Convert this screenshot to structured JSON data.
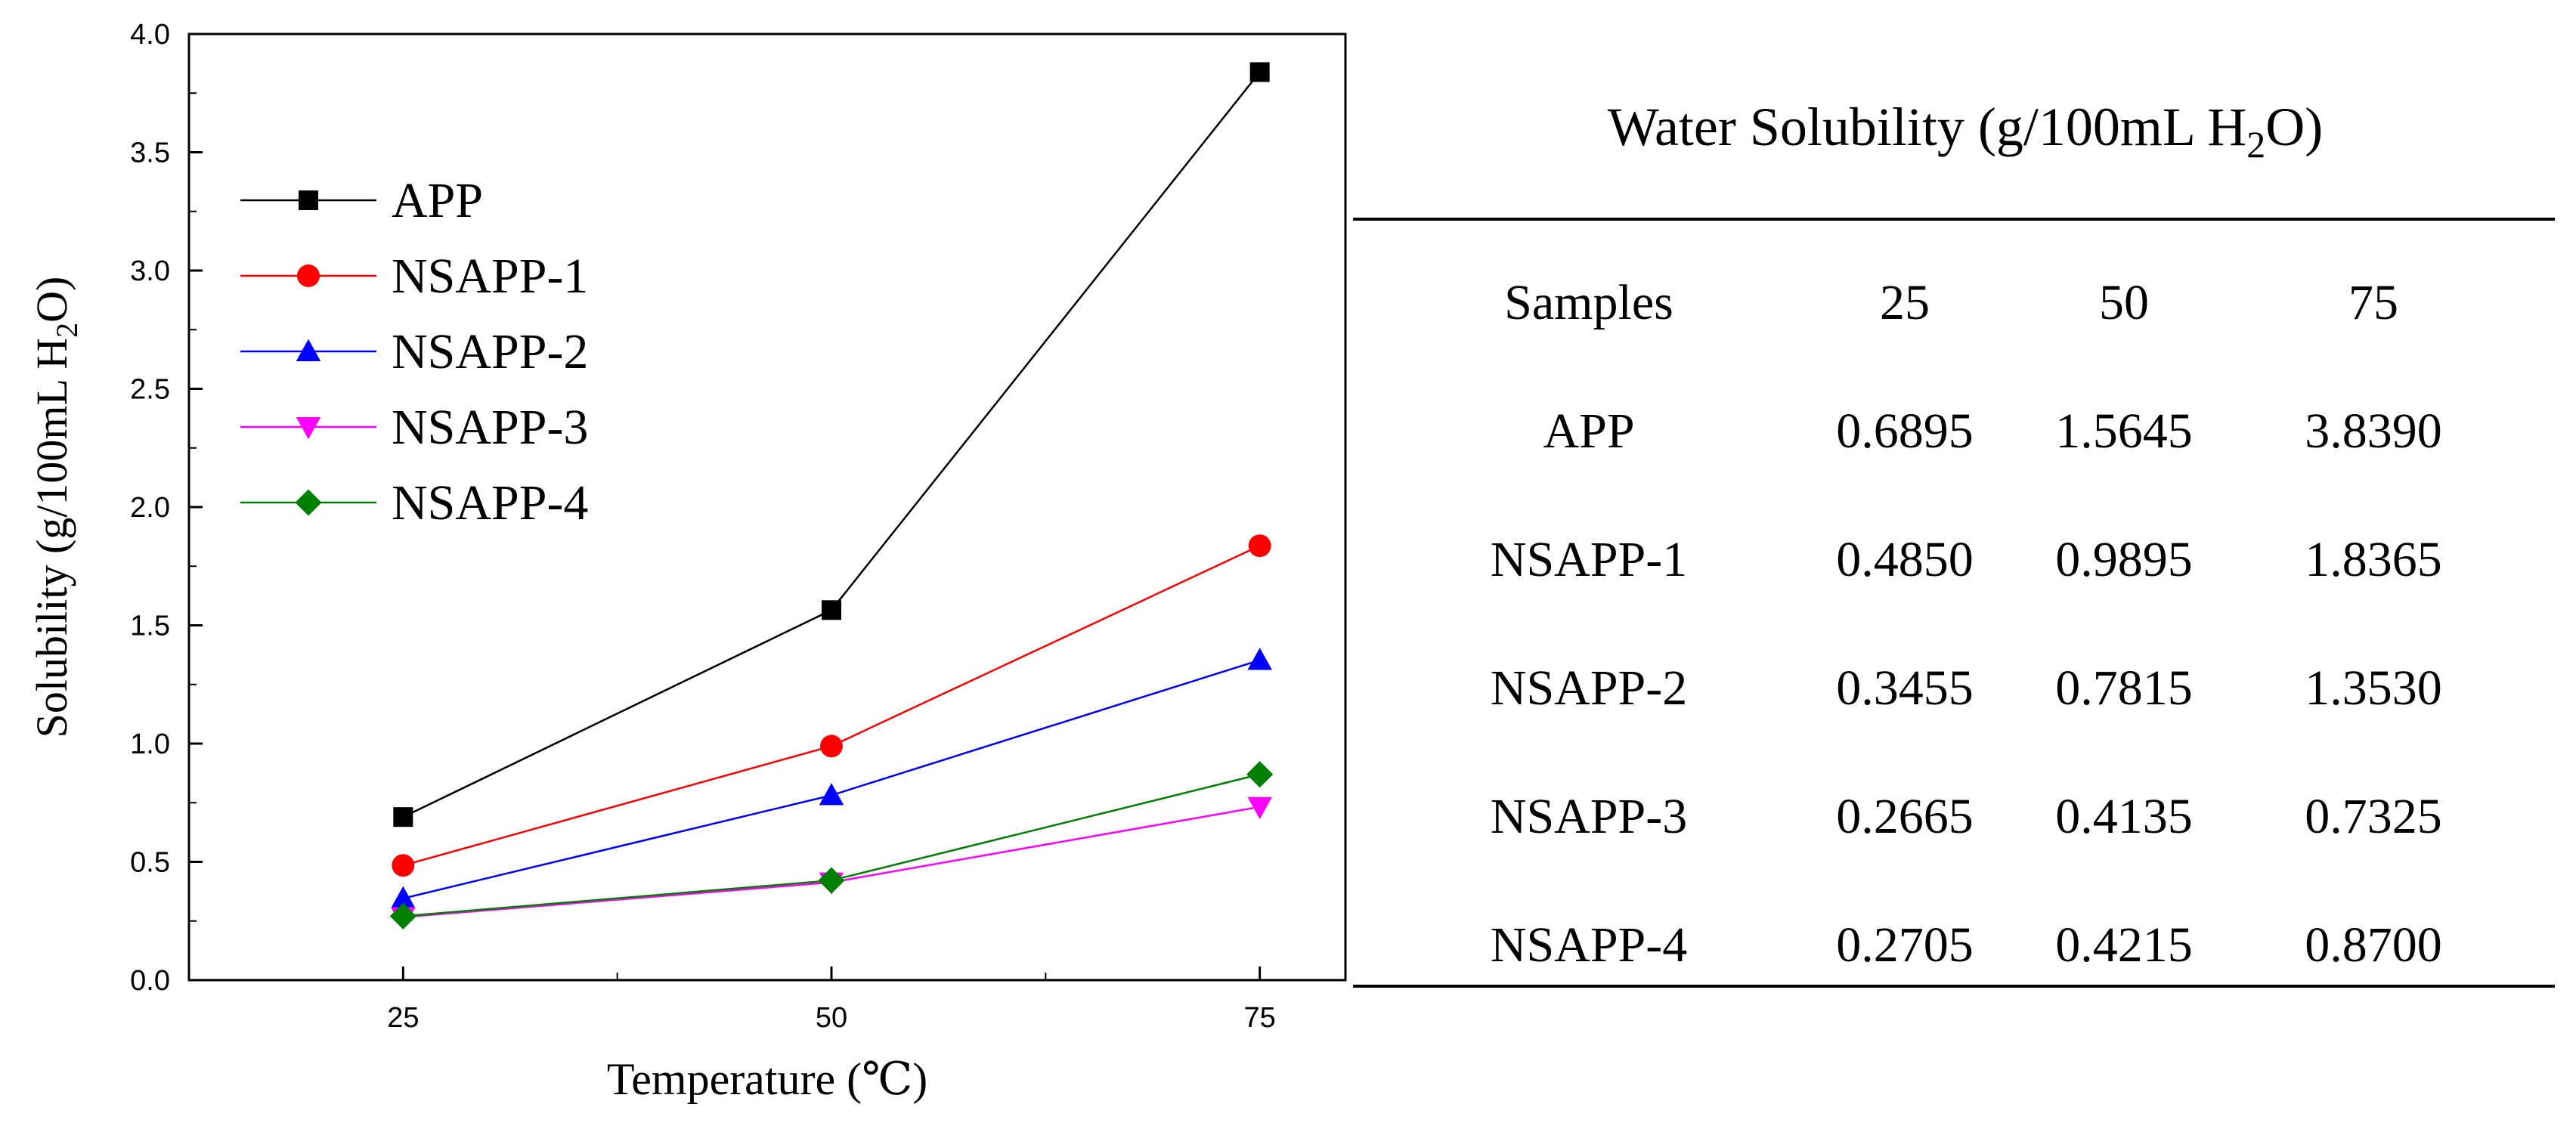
{
  "chart_data": [
    {
      "type": "line",
      "title": "",
      "xlabel": "Temperature (℃)",
      "ylabel": "Solubility (g/100mL H2O)",
      "ylabel_parts": {
        "main": "Solubility (g/100mL H",
        "sub": "2",
        "tail": "O)"
      },
      "xlim": [
        12.5,
        80
      ],
      "ylim": [
        0,
        4.0
      ],
      "x": [
        25,
        50,
        75
      ],
      "x_ticks": [
        "25",
        "50",
        "75"
      ],
      "y_ticks": [
        "0.0",
        "0.5",
        "1.0",
        "1.5",
        "2.0",
        "2.5",
        "3.0",
        "3.5",
        "4.0"
      ],
      "legend_position": "top-left",
      "series": [
        {
          "name": "APP",
          "marker": "square",
          "color": "#000000",
          "values": [
            0.6895,
            1.5645,
            3.839
          ]
        },
        {
          "name": "NSAPP-1",
          "marker": "circle",
          "color": "#ff0000",
          "values": [
            0.485,
            0.9895,
            1.8365
          ]
        },
        {
          "name": "NSAPP-2",
          "marker": "triangle-up",
          "color": "#0000ff",
          "values": [
            0.3455,
            0.7815,
            1.353
          ]
        },
        {
          "name": "NSAPP-3",
          "marker": "triangle-down",
          "color": "#ff00ff",
          "values": [
            0.2665,
            0.4135,
            0.7325
          ]
        },
        {
          "name": "NSAPP-4",
          "marker": "diamond",
          "color": "#008000",
          "values": [
            0.2705,
            0.4215,
            0.87
          ]
        }
      ]
    },
    {
      "type": "table",
      "title": "Water Solubility (g/100mL H2O)",
      "title_parts": {
        "main": "Water Solubility (g/100mL H",
        "sub": "2",
        "tail": "O)"
      },
      "columns": [
        "Samples",
        "25",
        "50",
        "75"
      ],
      "rows": [
        [
          "APP",
          "0.6895",
          "1.5645",
          "3.8390"
        ],
        [
          "NSAPP-1",
          "0.4850",
          "0.9895",
          "1.8365"
        ],
        [
          "NSAPP-2",
          "0.3455",
          "0.7815",
          "1.3530"
        ],
        [
          "NSAPP-3",
          "0.2665",
          "0.4135",
          "0.7325"
        ],
        [
          "NSAPP-4",
          "0.2705",
          "0.4215",
          "0.8700"
        ]
      ]
    }
  ]
}
